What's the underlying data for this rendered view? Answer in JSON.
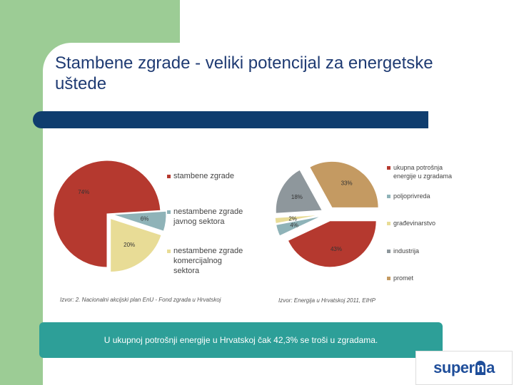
{
  "slide": {
    "title": "Stambene zgrade -  veliki potencijal  za energetske uštede",
    "footer_text": "U ukupnoj potrošnji energije u Hrvatskoj čak 42,3% se troši u zgradama.",
    "logo_text_left": "super",
    "logo_text_mid": "n",
    "logo_text_right": "a"
  },
  "chart_data": [
    {
      "type": "pie",
      "source": "Izvor: 2. Nacionalni akcijski plan EnU - Fond zgrada u Hrvatskoj",
      "series": [
        {
          "name": "stambene zgrade",
          "value": 74,
          "label": "74%",
          "color": "#b5392f"
        },
        {
          "name": "nestambene zgrade javnog sektora",
          "value": 6,
          "label": "6%",
          "color": "#8fb3b8"
        },
        {
          "name": "nestambene zgrade komercijalnog sektora",
          "value": 20,
          "label": "20%",
          "color": "#e8dc96"
        }
      ]
    },
    {
      "type": "pie",
      "source": "Izvor: Energija u Hrvatskoj 2011, EIHP",
      "series": [
        {
          "name": "ukupna potrošnja energije u zgradama",
          "value": 43,
          "label": "43%",
          "color": "#b5392f"
        },
        {
          "name": "poljoprivreda",
          "value": 4,
          "label": "4%",
          "color": "#8fb3b8"
        },
        {
          "name": "građevinarstvo",
          "value": 2,
          "label": "2%",
          "color": "#e8dc96"
        },
        {
          "name": "industrija",
          "value": 18,
          "label": "18%",
          "color": "#8e979c"
        },
        {
          "name": "promet",
          "value": 33,
          "label": "33%",
          "color": "#c49a62"
        }
      ]
    }
  ]
}
